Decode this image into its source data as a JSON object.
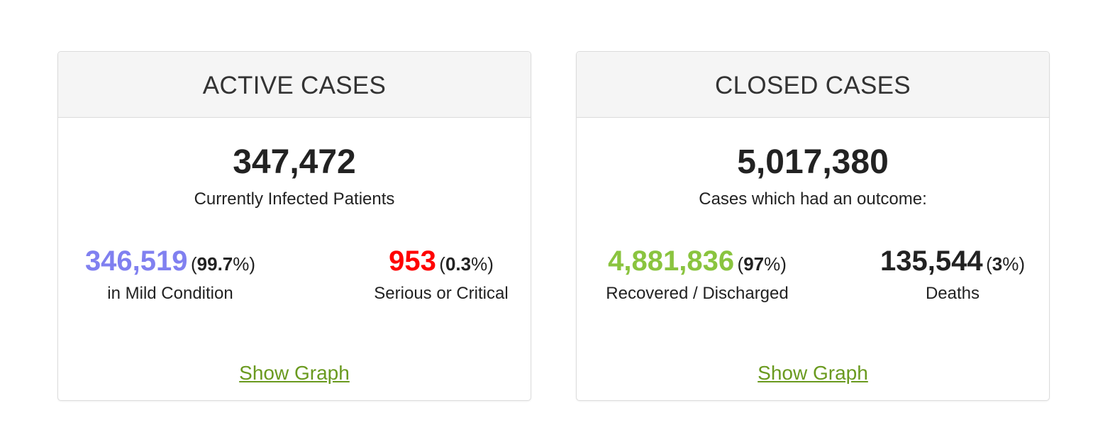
{
  "colors": {
    "mild": "#8080f0",
    "critical": "#ff0000",
    "recovered": "#8ac43f",
    "deaths": "#222222",
    "link": "#6a9a1f"
  },
  "active": {
    "title": "ACTIVE CASES",
    "total": "347,472",
    "caption": "Currently Infected Patients",
    "mild": {
      "value": "346,519",
      "percent": "99.7",
      "label": "in Mild Condition"
    },
    "critical": {
      "value": "953",
      "percent": "0.3",
      "label": "Serious or Critical"
    },
    "link_label": "Show Graph"
  },
  "closed": {
    "title": "CLOSED CASES",
    "total": "5,017,380",
    "caption": "Cases which had an outcome:",
    "recovered": {
      "value": "4,881,836",
      "percent": "97",
      "label": "Recovered / Discharged"
    },
    "deaths": {
      "value": "135,544",
      "percent": "3",
      "label": "Deaths"
    },
    "link_label": "Show Graph"
  }
}
